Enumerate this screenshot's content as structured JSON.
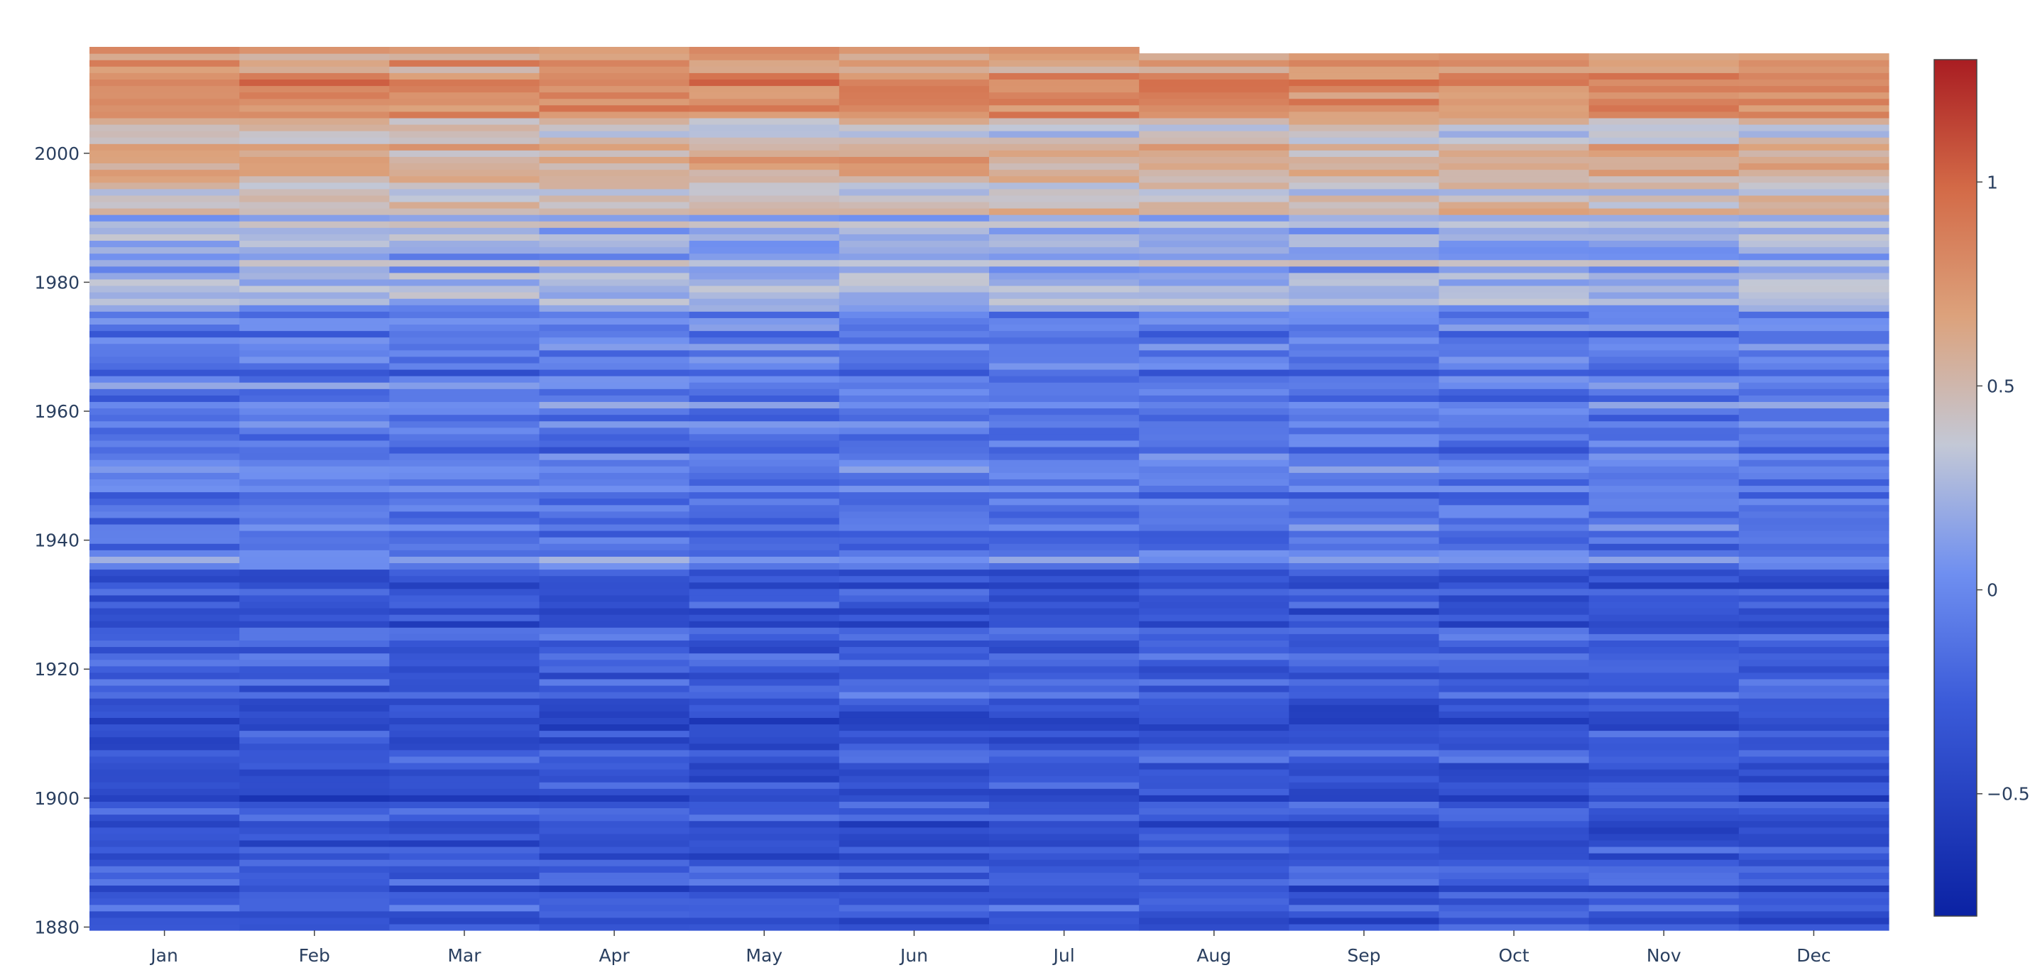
{
  "chart_data": {
    "type": "heatmap",
    "title": "",
    "xlabel": "",
    "ylabel": "",
    "x_categories": [
      "Jan",
      "Feb",
      "Mar",
      "Apr",
      "May",
      "Jun",
      "Jul",
      "Aug",
      "Sep",
      "Oct",
      "Nov",
      "Dec"
    ],
    "y_range": [
      1880,
      2016
    ],
    "y_ticks": [
      1880,
      1900,
      1920,
      1940,
      1960,
      1980,
      2000
    ],
    "y_tick_labels": [
      "1880",
      "1900",
      "1920",
      "1940",
      "1960",
      "1980",
      "2000"
    ],
    "last_year_months_present": [
      "Jan",
      "Feb",
      "Mar",
      "Apr",
      "May",
      "Jun",
      "Jul"
    ],
    "colorscale": {
      "name": "RdBu-like (blue to red)",
      "stops": [
        [
          0.0,
          "#0b22a3"
        ],
        [
          0.25,
          "#3b5bd9"
        ],
        [
          0.4,
          "#6f8ff0"
        ],
        [
          0.55,
          "#c3c8d6"
        ],
        [
          0.7,
          "#dca27c"
        ],
        [
          0.85,
          "#d36a47"
        ],
        [
          1.0,
          "#a91d22"
        ]
      ],
      "zmin": -0.8,
      "zmax": 1.3
    },
    "colorbar": {
      "ticks": [
        -0.5,
        0,
        0.5,
        1
      ],
      "tick_labels": [
        "−0.5",
        "0",
        "0.5",
        "1"
      ]
    },
    "anomaly_trend_by_period": [
      {
        "years": "1880-1915",
        "typical_value": -0.35
      },
      {
        "years": "1916-1935",
        "typical_value": -0.3
      },
      {
        "years": "1936-1945",
        "typical_value": -0.05
      },
      {
        "years": "1946-1975",
        "typical_value": -0.1
      },
      {
        "years": "1976-1990",
        "typical_value": 0.2
      },
      {
        "years": "1991-2005",
        "typical_value": 0.5
      },
      {
        "years": "2006-2016",
        "typical_value": 0.75
      }
    ],
    "grid": false,
    "legend": "colorbar-right"
  }
}
